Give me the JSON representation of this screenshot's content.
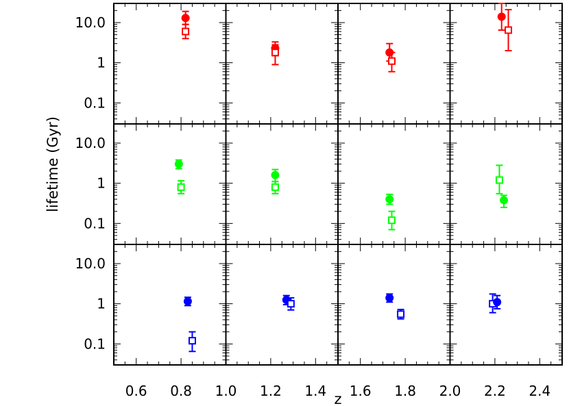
{
  "chart_data": {
    "type": "scatter",
    "title": "",
    "xlabel": "z",
    "ylabel": "lifetime (Gyr)",
    "x_ticks": [
      "0.6",
      "0.8",
      "1.0",
      "1.2",
      "1.4",
      "1.6",
      "1.8",
      "2.0",
      "2.2",
      "2.4"
    ],
    "y_ticks": [
      "10.0",
      "1",
      "0.1"
    ],
    "x_range": [
      0.5,
      2.5
    ],
    "y_range": [
      0.03,
      30
    ],
    "y_scale": "log",
    "grid": false,
    "rows": [
      {
        "color": "#ff0000",
        "points": [
          {
            "z": 0.82,
            "y": 13.0,
            "lo": 9.0,
            "hi": 19.0,
            "marker": "circle"
          },
          {
            "z": 0.82,
            "y": 6.0,
            "lo": 4.0,
            "hi": 9.0,
            "marker": "square"
          },
          {
            "z": 1.22,
            "y": 2.3,
            "lo": 1.5,
            "hi": 3.3,
            "marker": "circle"
          },
          {
            "z": 1.22,
            "y": 1.8,
            "lo": 0.9,
            "hi": 2.8,
            "marker": "square"
          },
          {
            "z": 1.73,
            "y": 1.8,
            "lo": 1.1,
            "hi": 3.0,
            "marker": "circle"
          },
          {
            "z": 1.74,
            "y": 1.1,
            "lo": 0.6,
            "hi": 1.8,
            "marker": "square"
          },
          {
            "z": 2.23,
            "y": 14.0,
            "lo": 6.5,
            "hi": 30.0,
            "marker": "circle"
          },
          {
            "z": 2.26,
            "y": 6.5,
            "lo": 2.0,
            "hi": 21.0,
            "marker": "square"
          }
        ]
      },
      {
        "color": "#00ff00",
        "points": [
          {
            "z": 0.79,
            "y": 3.0,
            "lo": 2.3,
            "hi": 3.8,
            "marker": "circle"
          },
          {
            "z": 0.8,
            "y": 0.8,
            "lo": 0.55,
            "hi": 1.15,
            "marker": "square"
          },
          {
            "z": 1.22,
            "y": 1.6,
            "lo": 1.1,
            "hi": 2.2,
            "marker": "circle"
          },
          {
            "z": 1.22,
            "y": 0.8,
            "lo": 0.55,
            "hi": 1.1,
            "marker": "square"
          },
          {
            "z": 1.73,
            "y": 0.4,
            "lo": 0.3,
            "hi": 0.53,
            "marker": "circle"
          },
          {
            "z": 1.74,
            "y": 0.12,
            "lo": 0.07,
            "hi": 0.2,
            "marker": "square"
          },
          {
            "z": 2.22,
            "y": 1.2,
            "lo": 0.55,
            "hi": 2.8,
            "marker": "square"
          },
          {
            "z": 2.24,
            "y": 0.38,
            "lo": 0.25,
            "hi": 0.5,
            "marker": "circle"
          }
        ]
      },
      {
        "color": "#0000ff",
        "points": [
          {
            "z": 0.83,
            "y": 1.15,
            "lo": 0.9,
            "hi": 1.45,
            "marker": "circle"
          },
          {
            "z": 0.85,
            "y": 0.12,
            "lo": 0.065,
            "hi": 0.2,
            "marker": "square"
          },
          {
            "z": 1.27,
            "y": 1.25,
            "lo": 0.95,
            "hi": 1.6,
            "marker": "circle"
          },
          {
            "z": 1.29,
            "y": 1.0,
            "lo": 0.7,
            "hi": 1.4,
            "marker": "square"
          },
          {
            "z": 1.73,
            "y": 1.4,
            "lo": 1.1,
            "hi": 1.75,
            "marker": "circle"
          },
          {
            "z": 1.78,
            "y": 0.55,
            "lo": 0.42,
            "hi": 0.72,
            "marker": "square"
          },
          {
            "z": 2.19,
            "y": 1.0,
            "lo": 0.6,
            "hi": 1.75,
            "marker": "square"
          },
          {
            "z": 2.21,
            "y": 1.1,
            "lo": 0.75,
            "hi": 1.6,
            "marker": "circle"
          }
        ]
      }
    ]
  }
}
